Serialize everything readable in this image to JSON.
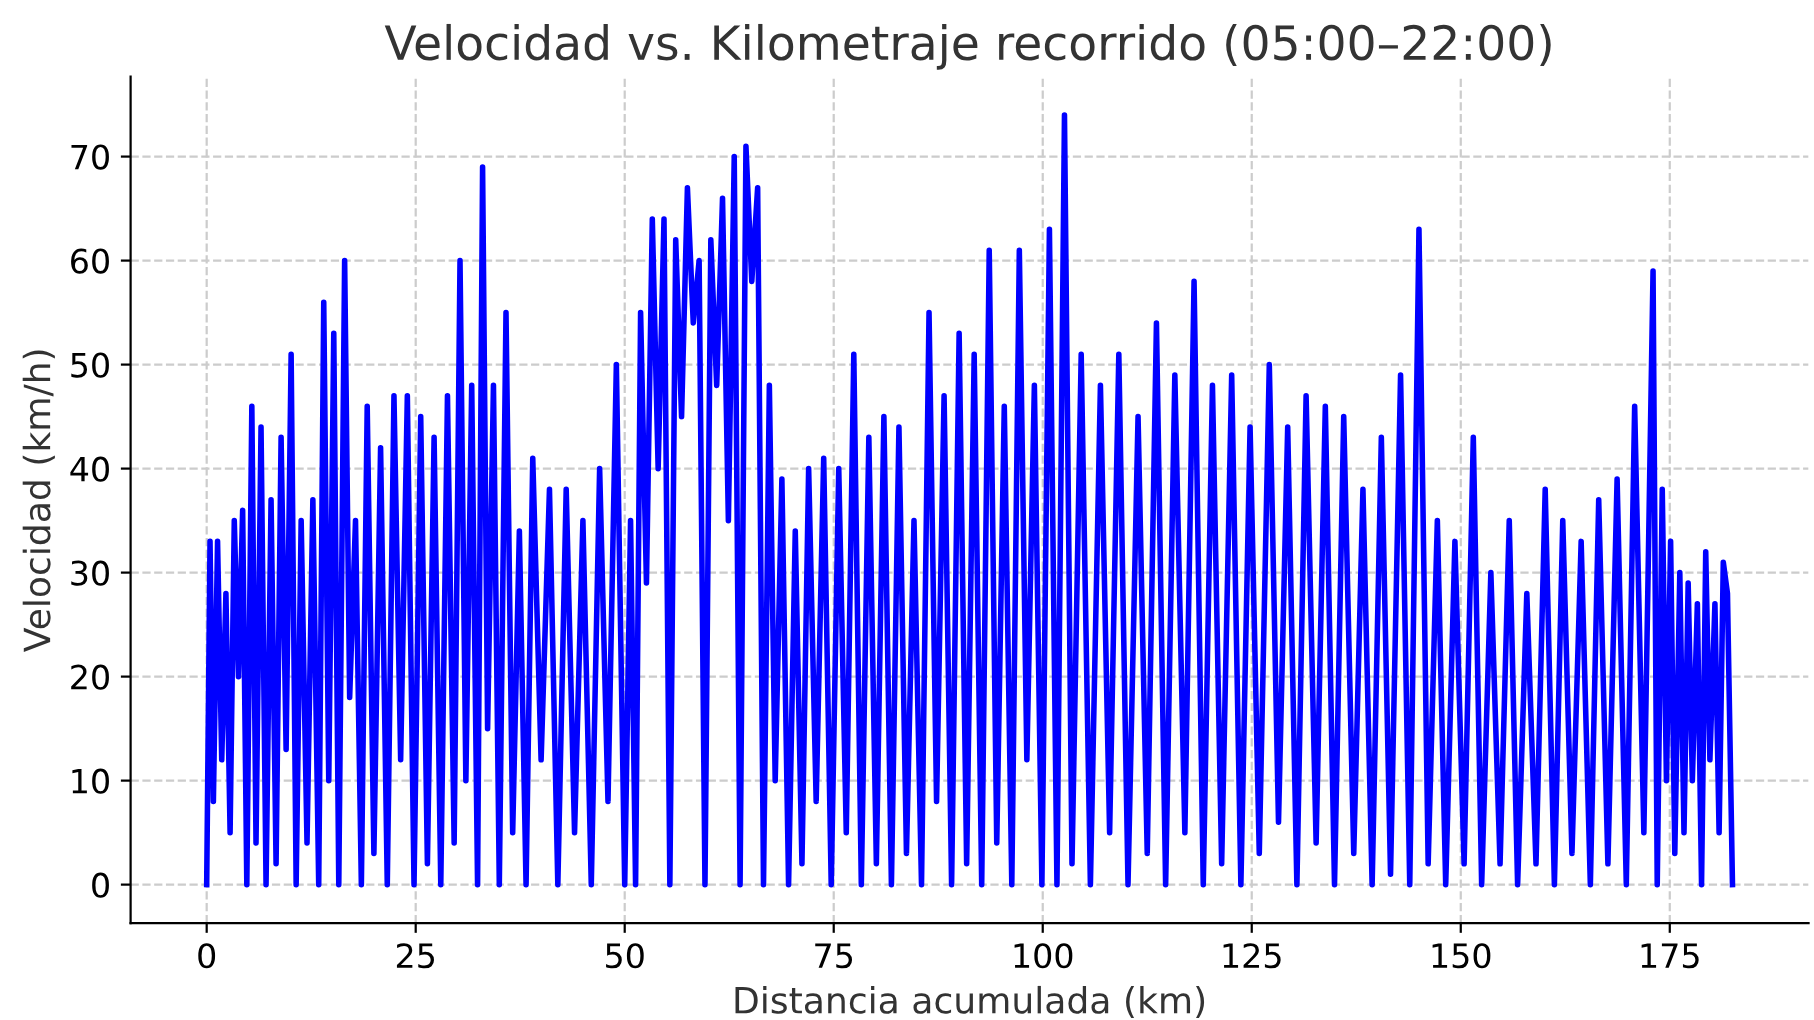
{
  "chart_data": {
    "type": "line",
    "title": "Velocidad vs. Kilometraje recorrido (05:00–22:00)",
    "xlabel": "Distancia acumulada (km)",
    "ylabel": "Velocidad (km/h)",
    "x": [
      0,
      0.4,
      0.8,
      1.3,
      1.8,
      2.3,
      2.8,
      3.3,
      3.8,
      4.3,
      4.8,
      5.4,
      5.9,
      6.5,
      7.1,
      7.7,
      8.3,
      8.9,
      9.5,
      10.1,
      10.7,
      11.3,
      12,
      12.7,
      13.4,
      14,
      14.6,
      15.2,
      15.8,
      16.5,
      17.1,
      17.8,
      18.5,
      19.2,
      20,
      20.8,
      21.6,
      22.4,
      23.2,
      24,
      24.8,
      25.6,
      26.4,
      27.2,
      28,
      28.8,
      29.6,
      30.3,
      31,
      31.7,
      32.4,
      33,
      33.6,
      34.3,
      35,
      35.8,
      36.6,
      37.4,
      38.2,
      39,
      40,
      41,
      42,
      43,
      44,
      45,
      46,
      47,
      48,
      49,
      50,
      50.7,
      51.3,
      51.9,
      52.6,
      53.3,
      54,
      54.7,
      55.4,
      56.1,
      56.8,
      57.5,
      58.2,
      58.9,
      59.6,
      60.3,
      61,
      61.7,
      62.4,
      63.1,
      63.8,
      64.5,
      65.2,
      65.9,
      66.6,
      67.3,
      68,
      68.8,
      69.6,
      70.4,
      71.2,
      72,
      72.9,
      73.8,
      74.7,
      75.6,
      76.5,
      77.4,
      78.3,
      79.2,
      80.1,
      81,
      81.9,
      82.8,
      83.7,
      84.6,
      85.5,
      86.4,
      87.3,
      88.2,
      89.1,
      90,
      90.9,
      91.8,
      92.7,
      93.6,
      94.5,
      95.4,
      96.3,
      97.2,
      98.1,
      99,
      99.9,
      100.8,
      101.7,
      102.6,
      103.5,
      104.6,
      105.7,
      106.9,
      108,
      109.1,
      110.2,
      111.4,
      112.5,
      113.6,
      114.7,
      115.8,
      117,
      118.1,
      119.2,
      120.3,
      121.4,
      122.6,
      123.7,
      124.8,
      125.9,
      127.1,
      128.2,
      129.3,
      130.4,
      131.5,
      132.7,
      133.8,
      134.9,
      136,
      137.2,
      138.3,
      139.4,
      140.5,
      141.6,
      142.8,
      143.9,
      145,
      146.1,
      147.2,
      148.2,
      149.3,
      150.4,
      151.5,
      152.5,
      153.6,
      154.7,
      155.8,
      156.8,
      157.9,
      159,
      160.1,
      161.2,
      162.2,
      163.3,
      164.4,
      165.5,
      166.5,
      167.6,
      168.7,
      169.8,
      170.8,
      171.9,
      173,
      173.5,
      174.1,
      174.6,
      175.1,
      175.6,
      176.2,
      176.7,
      177.2,
      177.7,
      178.3,
      178.8,
      179.3,
      179.8,
      180.4,
      180.9,
      181.4,
      181.9,
      182.5
    ],
    "series": [
      {
        "color": "#0000ff",
        "values": [
          0,
          33,
          8,
          33,
          12,
          28,
          5,
          35,
          20,
          36,
          0,
          46,
          4,
          44,
          0,
          37,
          2,
          43,
          13,
          51,
          0,
          35,
          4,
          37,
          0,
          56,
          10,
          53,
          0,
          60,
          18,
          35,
          0,
          46,
          3,
          42,
          0,
          47,
          12,
          47,
          0,
          45,
          2,
          43,
          0,
          47,
          4,
          60,
          10,
          48,
          0,
          69,
          15,
          48,
          0,
          55,
          5,
          34,
          0,
          41,
          12,
          38,
          0,
          38,
          5,
          35,
          0,
          40,
          8,
          50,
          0,
          35,
          0,
          55,
          29,
          64,
          40,
          64,
          0,
          62,
          45,
          67,
          54,
          60,
          0,
          62,
          48,
          66,
          35,
          70,
          0,
          71,
          58,
          67,
          0,
          48,
          10,
          39,
          0,
          34,
          2,
          40,
          8,
          41,
          0,
          40,
          5,
          51,
          0,
          43,
          2,
          45,
          0,
          44,
          3,
          35,
          0,
          55,
          8,
          47,
          0,
          53,
          2,
          51,
          0,
          61,
          4,
          46,
          0,
          61,
          12,
          48,
          0,
          63,
          0,
          74,
          2,
          51,
          0,
          48,
          5,
          51,
          0,
          45,
          3,
          54,
          0,
          49,
          5,
          58,
          0,
          48,
          2,
          49,
          0,
          44,
          3,
          50,
          6,
          44,
          0,
          47,
          4,
          46,
          0,
          45,
          3,
          38,
          0,
          43,
          1,
          49,
          0,
          63,
          2,
          35,
          0,
          33,
          2,
          43,
          0,
          30,
          2,
          35,
          0,
          28,
          2,
          38,
          0,
          35,
          3,
          33,
          0,
          37,
          2,
          39,
          0,
          46,
          5,
          59,
          0,
          38,
          10,
          33,
          3,
          30,
          5,
          29,
          10,
          27,
          0,
          32,
          12,
          27,
          5,
          31,
          28,
          0
        ]
      }
    ],
    "xlim": [
      -9.1,
      191.6
    ],
    "xticks": [
      0,
      25,
      50,
      75,
      100,
      125,
      150,
      175
    ],
    "ylim": [
      -3.7,
      77.7
    ],
    "yticks": [
      0,
      10,
      20,
      30,
      40,
      50,
      60,
      70
    ],
    "grid": true,
    "marker": "none",
    "line_style": "solid",
    "legend": false
  }
}
